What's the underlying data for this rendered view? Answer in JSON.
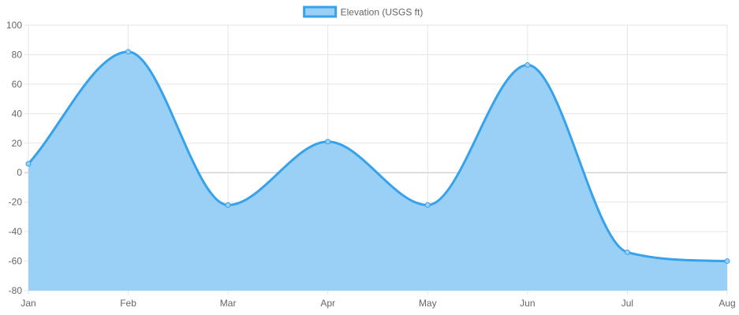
{
  "chart_data": {
    "type": "area",
    "categories": [
      "Jan",
      "Feb",
      "Mar",
      "Apr",
      "May",
      "Jun",
      "Jul",
      "Aug"
    ],
    "series": [
      {
        "name": "Elevation (USGS ft)",
        "values": [
          6,
          82,
          -22,
          21,
          -22,
          73,
          -54,
          -60
        ]
      }
    ],
    "ylim": [
      -80,
      100
    ],
    "yticks": [
      100,
      80,
      60,
      40,
      20,
      0,
      -20,
      -40,
      -60,
      -80
    ],
    "grid": true,
    "legend_position": "top-center",
    "colors": {
      "line": "#36a2eb",
      "fill": "#9ad0f5",
      "grid": "#e5e5e5",
      "zero_line": "#bdbdbd",
      "text": "#666666"
    }
  }
}
